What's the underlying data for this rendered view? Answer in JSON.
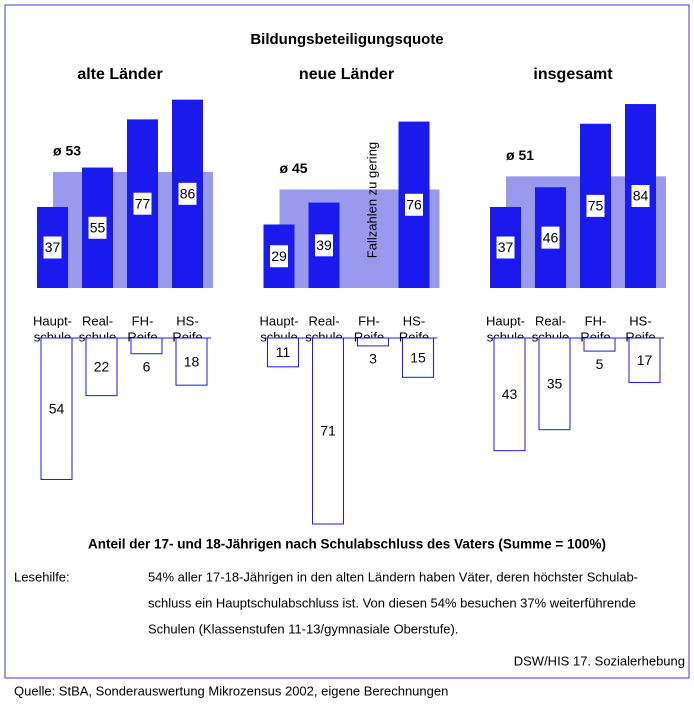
{
  "title": "Bildungsbeteiligungsquote",
  "chart_data": [
    {
      "type": "bar",
      "title": "alte Länder",
      "categories": [
        [
          "Haupt-",
          "schule"
        ],
        [
          "Real-",
          "schule"
        ],
        [
          "FH-",
          "Reife"
        ],
        [
          "HS-",
          "Reife"
        ]
      ],
      "values": [
        37,
        55,
        77,
        86
      ],
      "average": {
        "value": 53,
        "label": "ø 53"
      },
      "shares": [
        54,
        22,
        6,
        18
      ],
      "color": "#1a1aee",
      "average_color": "#9999ee",
      "share_color": "#1a1aee",
      "ylim": [
        0,
        100
      ],
      "share_ylim": [
        0,
        100
      ]
    },
    {
      "type": "bar",
      "title": "neue Länder",
      "categories": [
        [
          "Haupt-",
          "schule"
        ],
        [
          "Real-",
          "schule"
        ],
        [
          "FH-",
          "Reife"
        ],
        [
          "HS-",
          "Reife"
        ]
      ],
      "values": [
        29,
        39,
        null,
        76
      ],
      "average": {
        "value": 45,
        "label": "ø 45"
      },
      "annotation": "Fallzahlen zu gering",
      "shares": [
        11,
        71,
        3,
        15
      ],
      "color": "#1a1aee",
      "average_color": "#9999ee",
      "share_color": "#1a1aee",
      "ylim": [
        0,
        100
      ],
      "share_ylim": [
        0,
        100
      ]
    },
    {
      "type": "bar",
      "title": "insgesamt",
      "categories": [
        [
          "Haupt-",
          "schule"
        ],
        [
          "Real-",
          "schule"
        ],
        [
          "FH-",
          "Reife"
        ],
        [
          "HS-",
          "Reife"
        ]
      ],
      "values": [
        37,
        46,
        75,
        84
      ],
      "average": {
        "value": 51,
        "label": "ø 51"
      },
      "shares": [
        43,
        35,
        5,
        17
      ],
      "color": "#1a1aee",
      "average_color": "#9999ee",
      "share_color": "#1a1aee",
      "ylim": [
        0,
        100
      ],
      "share_ylim": [
        0,
        100
      ]
    }
  ],
  "caption": "Anteil der 17- und 18-Jährigen nach Schulabschluss des Vaters (Summe = 100%)",
  "reading_aid_label": "Lesehilfe:",
  "reading_aid": [
    "54% aller 17-18-Jährigen in den alten Ländern haben Väter, deren höchster Schulab-",
    "schluss ein Hauptschulabschluss ist. Von diesen 54% besuchen 37% weiterführende",
    "Schulen (Klassenstufen 11-13/gymnasiale Oberstufe)."
  ],
  "publisher": "DSW/HIS 17. Sozialerhebung",
  "source": "Quelle: StBA, Sonderauswertung Mikrozensus 2002, eigene Berechnungen"
}
